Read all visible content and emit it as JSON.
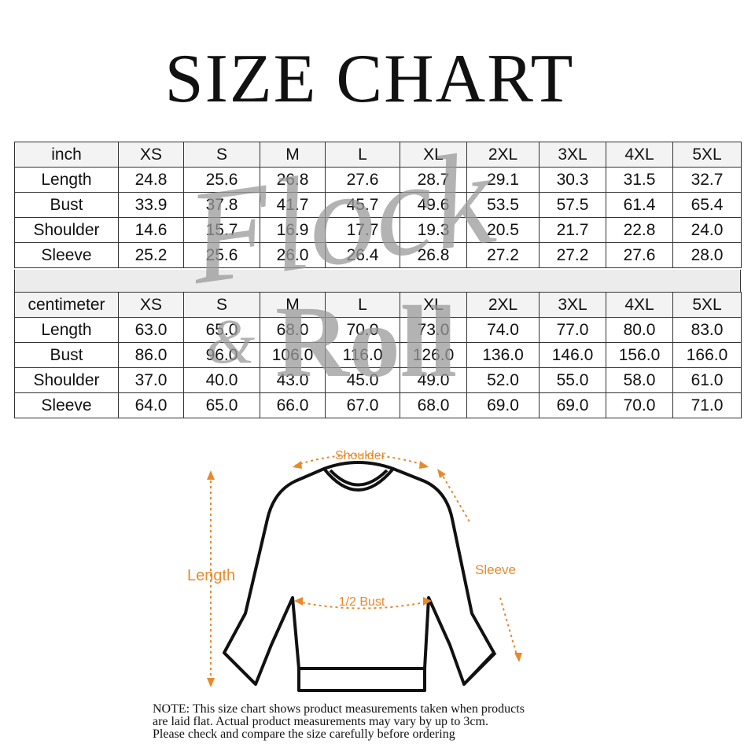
{
  "title": "SIZE CHART",
  "watermark": {
    "top": "Flock",
    "amp": "&",
    "bottom": "Roll"
  },
  "tables": [
    {
      "header": [
        "inch",
        "XS",
        "S",
        "M",
        "L",
        "XL",
        "2XL",
        "3XL",
        "4XL",
        "5XL"
      ],
      "rows": [
        [
          "Length",
          "24.8",
          "25.6",
          "26.8",
          "27.6",
          "28.7",
          "29.1",
          "30.3",
          "31.5",
          "32.7"
        ],
        [
          "Bust",
          "33.9",
          "37.8",
          "41.7",
          "45.7",
          "49.6",
          "53.5",
          "57.5",
          "61.4",
          "65.4"
        ],
        [
          "Shoulder",
          "14.6",
          "15.7",
          "16.9",
          "17.7",
          "19.3",
          "20.5",
          "21.7",
          "22.8",
          "24.0"
        ],
        [
          "Sleeve",
          "25.2",
          "25.6",
          "26.0",
          "26.4",
          "26.8",
          "27.2",
          "27.2",
          "27.6",
          "28.0"
        ]
      ]
    },
    {
      "header": [
        "centimeter",
        "XS",
        "S",
        "M",
        "L",
        "XL",
        "2XL",
        "3XL",
        "4XL",
        "5XL"
      ],
      "rows": [
        [
          "Length",
          "63.0",
          "65.0",
          "68.0",
          "70.0",
          "73.0",
          "74.0",
          "77.0",
          "80.0",
          "83.0"
        ],
        [
          "Bust",
          "86.0",
          "96.0",
          "106.0",
          "116.0",
          "126.0",
          "136.0",
          "146.0",
          "156.0",
          "166.0"
        ],
        [
          "Shoulder",
          "37.0",
          "40.0",
          "43.0",
          "45.0",
          "49.0",
          "52.0",
          "55.0",
          "58.0",
          "61.0"
        ],
        [
          "Sleeve",
          "64.0",
          "65.0",
          "66.0",
          "67.0",
          "68.0",
          "69.0",
          "69.0",
          "70.0",
          "71.0"
        ]
      ]
    }
  ],
  "diagram": {
    "shoulder": "Shoulder",
    "length": "Length",
    "sleeve": "Sleeve",
    "bust": "1/2 Bust"
  },
  "note": [
    "NOTE: This size chart shows product measurements taken when products",
    "are laid flat. Actual product measurements may vary by up to 3cm.",
    "Please check and compare the size carefully before ordering"
  ]
}
